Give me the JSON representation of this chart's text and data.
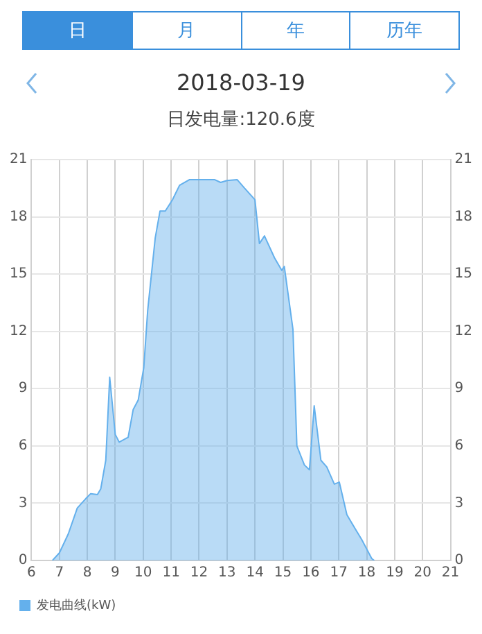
{
  "chart_data": {
    "type": "area",
    "title": "2018-03-19",
    "subtitle": "日发电量:120.6度",
    "annotations": [
      "日",
      "月",
      "年",
      "历年"
    ],
    "x": [
      6.75,
      7.0,
      7.32,
      7.64,
      7.95,
      8.12,
      8.36,
      8.48,
      8.66,
      8.8,
      9.0,
      9.14,
      9.46,
      9.64,
      9.82,
      10.02,
      10.16,
      10.43,
      10.6,
      10.79,
      11.05,
      11.3,
      11.66,
      12.55,
      12.77,
      13.0,
      13.36,
      13.63,
      14.0,
      14.16,
      14.34,
      14.7,
      14.96,
      15.05,
      15.36,
      15.5,
      15.77,
      15.95,
      16.12,
      16.36,
      16.57,
      16.84,
      17.02,
      17.29,
      17.55,
      17.82,
      18.18,
      18.27
    ],
    "series": [
      {
        "name": "发电曲线(kW)",
        "color": "#64b0ec",
        "values": [
          0,
          0.4,
          1.4,
          2.75,
          3.25,
          3.5,
          3.45,
          3.75,
          5.25,
          9.6,
          6.6,
          6.2,
          6.45,
          7.9,
          8.4,
          10.1,
          13.1,
          16.9,
          18.3,
          18.3,
          18.9,
          19.65,
          19.95,
          19.95,
          19.8,
          19.9,
          19.95,
          19.5,
          18.9,
          16.6,
          17.0,
          15.85,
          15.2,
          15.4,
          12.1,
          6.0,
          5.0,
          4.75,
          8.1,
          5.25,
          4.9,
          4.0,
          4.1,
          2.4,
          1.75,
          1.1,
          0.1,
          0
        ]
      }
    ],
    "xlim": [
      6,
      21
    ],
    "xticks": [
      6,
      7,
      8,
      9,
      10,
      11,
      12,
      13,
      14,
      15,
      16,
      17,
      18,
      19,
      20,
      21
    ],
    "ylim": [
      0,
      21
    ],
    "yticks": [
      0,
      3,
      6,
      9,
      12,
      15,
      18,
      21
    ],
    "y2lim": [
      0,
      21
    ],
    "y2ticks": [
      0,
      3,
      6,
      9,
      12,
      15,
      18,
      21
    ],
    "grid": true,
    "legend": "bottom left"
  }
}
